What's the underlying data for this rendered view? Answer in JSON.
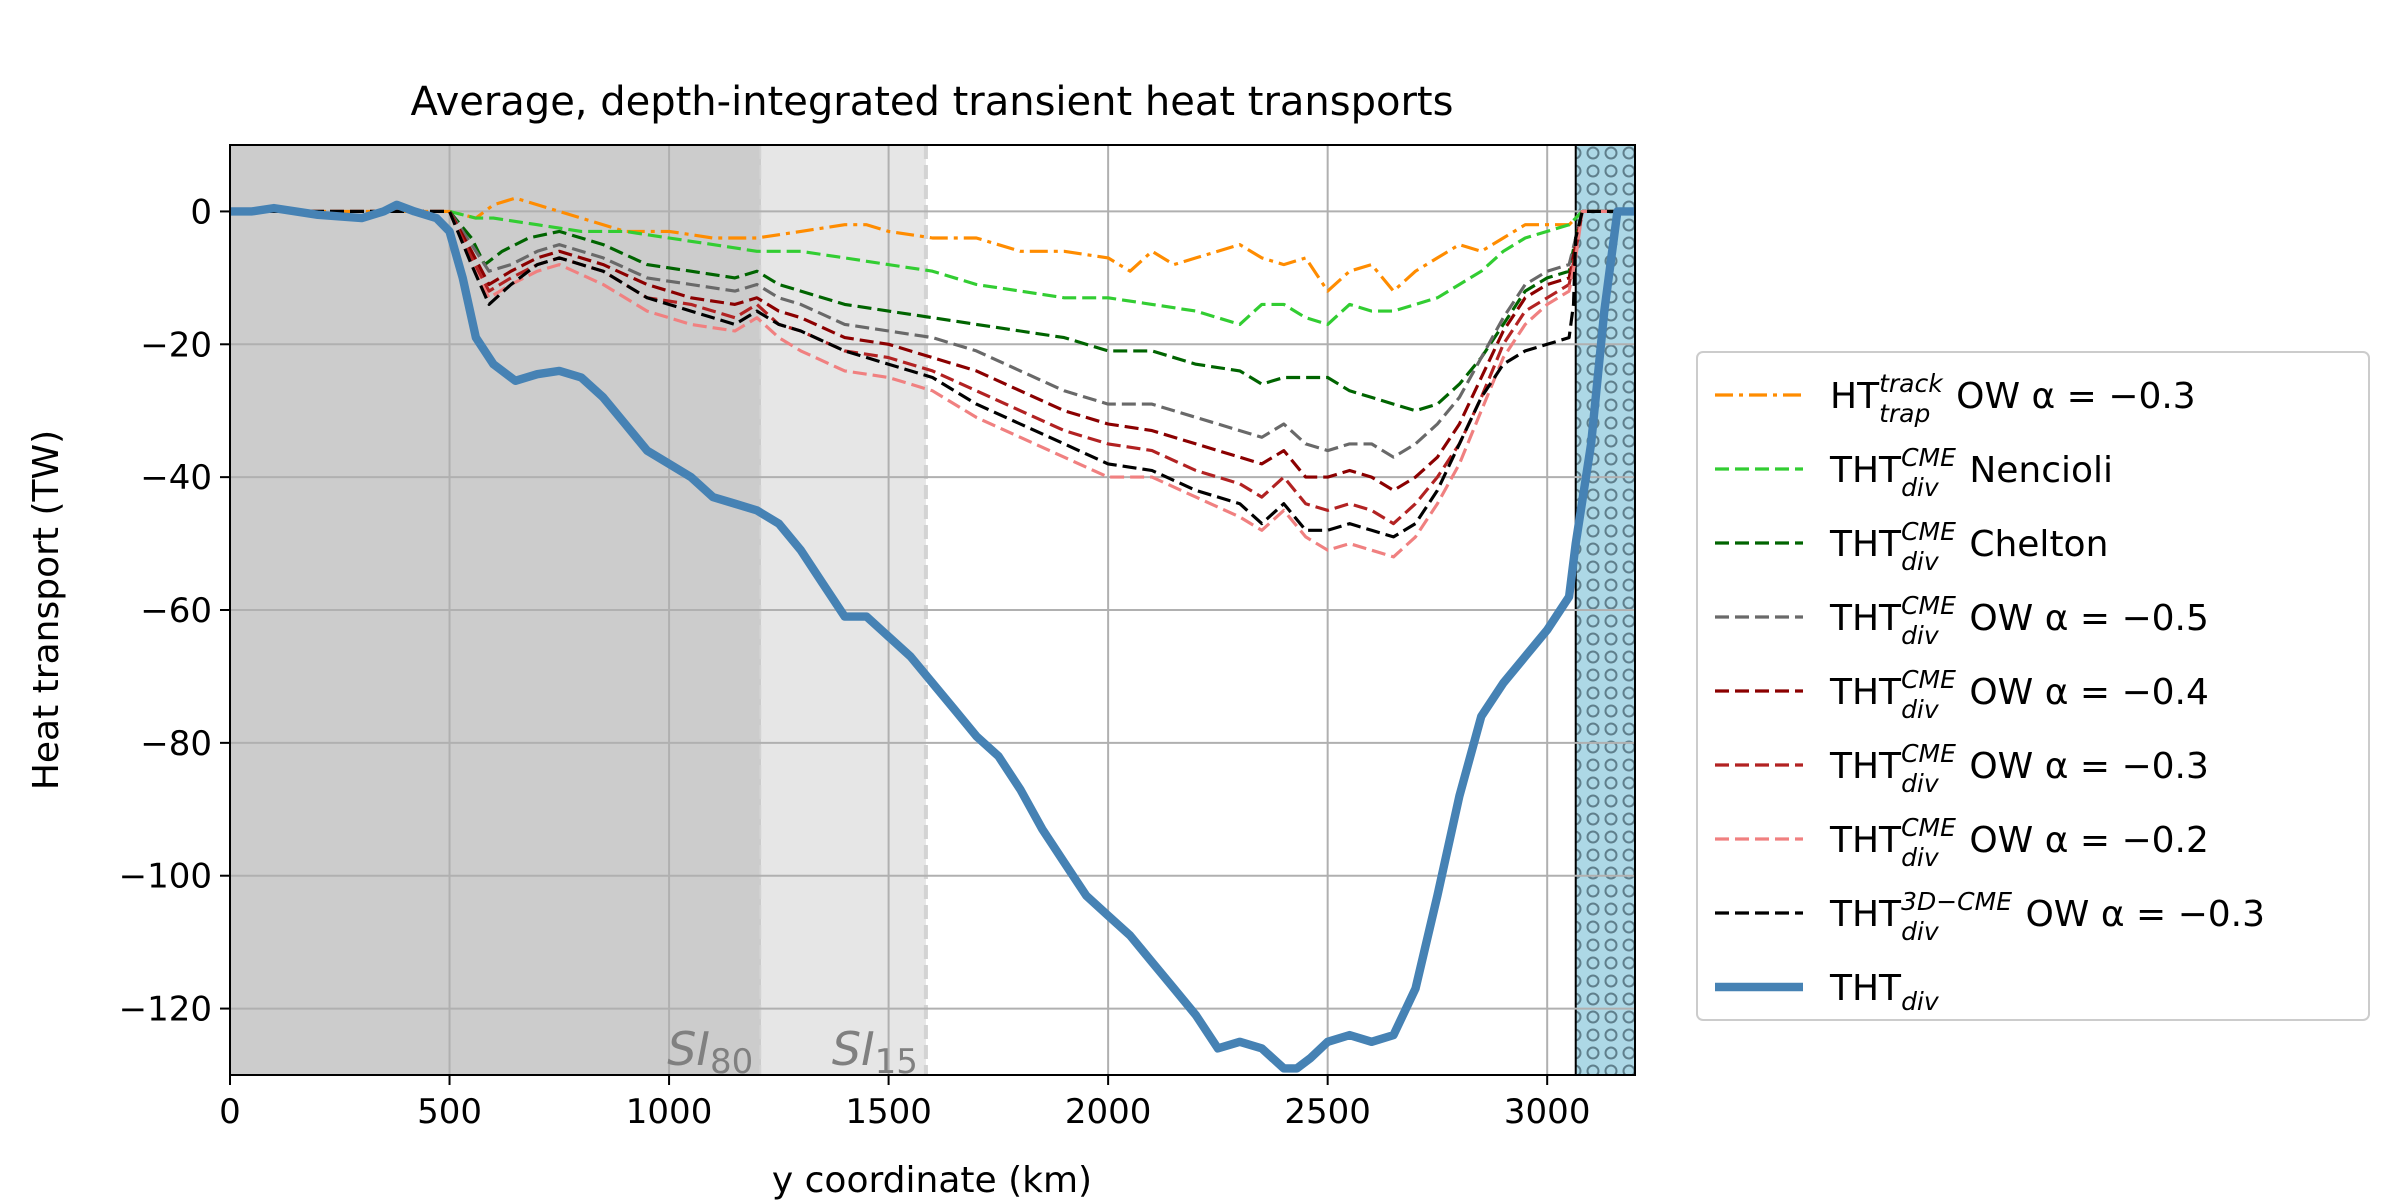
{
  "chart_data": {
    "type": "line",
    "title": "Average, depth-integrated transient heat transports",
    "xlabel": "y coordinate (km)",
    "ylabel": "Heat transport (TW)",
    "xlim": [
      0,
      3200
    ],
    "ylim": [
      -130,
      10
    ],
    "xticks": [
      0,
      500,
      1000,
      1500,
      2000,
      2500,
      3000
    ],
    "yticks": [
      0,
      -20,
      -40,
      -60,
      -80,
      -100,
      -120
    ],
    "xtick_labels": [
      "0",
      "500",
      "1000",
      "1500",
      "2000",
      "2500",
      "3000"
    ],
    "ytick_labels": [
      "0",
      "−20",
      "−40",
      "−60",
      "−80",
      "−100",
      "−120"
    ],
    "grid": true,
    "legend_placement": "outside right",
    "regions": [
      {
        "from": 0,
        "to": 1210,
        "color": "#cccccc",
        "label_main": "SI",
        "label_sub": "80"
      },
      {
        "from": 1210,
        "to": 1585,
        "color": "#e6e6e6",
        "label_main": "SI",
        "label_sub": "15"
      },
      {
        "from": 3065,
        "to": 3200,
        "color": "#add8e6",
        "pattern": "circles"
      }
    ],
    "series": [
      {
        "name_main": "HT",
        "name_sup": "track",
        "name_sub": "trap",
        "name_rest": "  OW α = −0.3",
        "color": "#ff8c00",
        "style": "dashdot",
        "width": 1.5,
        "x": [
          0,
          200,
          400,
          500,
          560,
          600,
          650,
          700,
          800,
          900,
          1000,
          1100,
          1200,
          1300,
          1400,
          1450,
          1500,
          1600,
          1700,
          1800,
          1900,
          2000,
          2050,
          2100,
          2150,
          2200,
          2250,
          2300,
          2350,
          2400,
          2450,
          2500,
          2550,
          2600,
          2650,
          2700,
          2750,
          2800,
          2850,
          2900,
          2950,
          3000,
          3050,
          3065,
          3080,
          3200
        ],
        "y": [
          0,
          0,
          0,
          0,
          -1,
          1,
          2,
          1,
          -1,
          -3,
          -3,
          -4,
          -4,
          -3,
          -2,
          -2,
          -3,
          -4,
          -4,
          -6,
          -6,
          -7,
          -9,
          -6,
          -8,
          -7,
          -6,
          -5,
          -7,
          -8,
          -7,
          -12,
          -9,
          -8,
          -12,
          -9,
          -7,
          -5,
          -6,
          -4,
          -2,
          -2,
          -2,
          -1,
          0,
          0
        ]
      },
      {
        "name_main": "THT",
        "name_sup": "CME",
        "name_sub": "div",
        "name_rest": " Nencioli",
        "color": "#32cd32",
        "style": "dashed",
        "width": 1.5,
        "x": [
          0,
          200,
          400,
          500,
          560,
          600,
          700,
          800,
          900,
          1000,
          1100,
          1200,
          1300,
          1400,
          1500,
          1600,
          1700,
          1800,
          1900,
          2000,
          2100,
          2200,
          2300,
          2350,
          2400,
          2450,
          2500,
          2550,
          2600,
          2650,
          2700,
          2750,
          2800,
          2850,
          2900,
          2950,
          3000,
          3050,
          3065,
          3080,
          3200
        ],
        "y": [
          0,
          0,
          0,
          0,
          -1,
          -1,
          -2,
          -3,
          -3,
          -4,
          -5,
          -6,
          -6,
          -7,
          -8,
          -9,
          -11,
          -12,
          -13,
          -13,
          -14,
          -15,
          -17,
          -14,
          -14,
          -16,
          -17,
          -14,
          -15,
          -15,
          -14,
          -13,
          -11,
          -9,
          -6,
          -4,
          -3,
          -2,
          -1,
          0,
          0
        ]
      },
      {
        "name_main": "THT",
        "name_sup": "CME",
        "name_sub": "div",
        "name_rest": " Chelton",
        "color": "#006400",
        "style": "dashed",
        "width": 1.5,
        "x": [
          0,
          200,
          400,
          500,
          550,
          580,
          620,
          680,
          750,
          850,
          950,
          1050,
          1150,
          1200,
          1250,
          1300,
          1400,
          1500,
          1600,
          1700,
          1800,
          1900,
          2000,
          2100,
          2200,
          2300,
          2350,
          2400,
          2500,
          2550,
          2600,
          2650,
          2700,
          2750,
          2800,
          2850,
          2900,
          2950,
          3000,
          3050,
          3065,
          3080,
          3200
        ],
        "y": [
          0,
          0,
          0,
          0,
          -4,
          -8,
          -6,
          -4,
          -3,
          -5,
          -8,
          -9,
          -10,
          -9,
          -11,
          -12,
          -14,
          -15,
          -16,
          -17,
          -18,
          -19,
          -21,
          -21,
          -23,
          -24,
          -26,
          -25,
          -25,
          -27,
          -28,
          -29,
          -30,
          -29,
          -26,
          -22,
          -17,
          -12,
          -10,
          -9,
          -4,
          0,
          0
        ]
      },
      {
        "name_main": "THT",
        "name_sup": "CME",
        "name_sub": "div",
        "name_rest": " OW α = −0.5",
        "color": "#696969",
        "style": "dashed",
        "width": 1.5,
        "x": [
          0,
          200,
          400,
          500,
          550,
          590,
          640,
          700,
          750,
          850,
          950,
          1050,
          1150,
          1200,
          1250,
          1300,
          1400,
          1500,
          1600,
          1700,
          1800,
          1900,
          2000,
          2100,
          2200,
          2300,
          2350,
          2400,
          2450,
          2500,
          2550,
          2600,
          2650,
          2700,
          2750,
          2800,
          2850,
          2900,
          2950,
          3000,
          3050,
          3065,
          3080,
          3200
        ],
        "y": [
          0,
          0,
          0,
          0,
          -5,
          -9,
          -8,
          -6,
          -5,
          -7,
          -10,
          -11,
          -12,
          -11,
          -13,
          -14,
          -17,
          -18,
          -19,
          -21,
          -24,
          -27,
          -29,
          -29,
          -31,
          -33,
          -34,
          -32,
          -35,
          -36,
          -35,
          -35,
          -37,
          -35,
          -32,
          -28,
          -22,
          -16,
          -11,
          -9,
          -8,
          -4,
          0,
          0
        ]
      },
      {
        "name_main": "THT",
        "name_sup": "CME",
        "name_sub": "div",
        "name_rest": " OW α = −0.4",
        "color": "#8b0000",
        "style": "dashed",
        "width": 1.5,
        "x": [
          0,
          200,
          400,
          500,
          550,
          590,
          640,
          700,
          750,
          850,
          950,
          1050,
          1150,
          1200,
          1250,
          1300,
          1400,
          1500,
          1600,
          1700,
          1800,
          1900,
          2000,
          2100,
          2200,
          2300,
          2350,
          2400,
          2450,
          2500,
          2550,
          2600,
          2650,
          2700,
          2750,
          2800,
          2850,
          2900,
          2950,
          3000,
          3050,
          3065,
          3080,
          3200
        ],
        "y": [
          0,
          0,
          0,
          0,
          -6,
          -11,
          -9,
          -7,
          -6,
          -8,
          -11,
          -13,
          -14,
          -13,
          -15,
          -16,
          -19,
          -20,
          -22,
          -24,
          -27,
          -30,
          -32,
          -33,
          -35,
          -37,
          -38,
          -36,
          -40,
          -40,
          -39,
          -40,
          -42,
          -40,
          -37,
          -32,
          -25,
          -18,
          -13,
          -11,
          -10,
          -5,
          0,
          0
        ]
      },
      {
        "name_main": "THT",
        "name_sup": "CME",
        "name_sub": "div",
        "name_rest": " OW α = −0.3",
        "color": "#b22222",
        "style": "dashed",
        "width": 1.5,
        "x": [
          0,
          200,
          400,
          500,
          550,
          590,
          640,
          700,
          750,
          850,
          950,
          1050,
          1150,
          1200,
          1250,
          1300,
          1400,
          1500,
          1600,
          1700,
          1800,
          1900,
          2000,
          2100,
          2200,
          2300,
          2350,
          2400,
          2450,
          2500,
          2550,
          2600,
          2650,
          2700,
          2750,
          2800,
          2850,
          2900,
          2950,
          3000,
          3050,
          3065,
          3080,
          3200
        ],
        "y": [
          0,
          0,
          0,
          0,
          -7,
          -12,
          -10,
          -8,
          -7,
          -9,
          -13,
          -14,
          -16,
          -14,
          -17,
          -18,
          -21,
          -22,
          -24,
          -27,
          -30,
          -33,
          -35,
          -36,
          -39,
          -41,
          -43,
          -40,
          -44,
          -45,
          -44,
          -45,
          -47,
          -44,
          -40,
          -35,
          -28,
          -20,
          -15,
          -13,
          -11,
          -6,
          0,
          0
        ]
      },
      {
        "name_main": "THT",
        "name_sup": "CME",
        "name_sub": "div",
        "name_rest": " OW α = −0.2",
        "color": "#f08080",
        "style": "dashed",
        "width": 1.5,
        "x": [
          0,
          200,
          400,
          500,
          550,
          590,
          640,
          700,
          750,
          850,
          950,
          1050,
          1150,
          1200,
          1250,
          1300,
          1400,
          1500,
          1600,
          1700,
          1800,
          1900,
          2000,
          2100,
          2200,
          2300,
          2350,
          2400,
          2450,
          2500,
          2550,
          2600,
          2650,
          2700,
          2750,
          2800,
          2850,
          2900,
          2950,
          3000,
          3050,
          3065,
          3080,
          3200
        ],
        "y": [
          0,
          0,
          0,
          0,
          -8,
          -13,
          -11,
          -9,
          -8,
          -11,
          -15,
          -17,
          -18,
          -16,
          -19,
          -21,
          -24,
          -25,
          -27,
          -31,
          -34,
          -37,
          -40,
          -40,
          -43,
          -46,
          -48,
          -45,
          -49,
          -51,
          -50,
          -51,
          -52,
          -49,
          -44,
          -38,
          -30,
          -22,
          -17,
          -14,
          -12,
          -7,
          0,
          0
        ]
      },
      {
        "name_main": "THT",
        "name_sup": "3D−CME",
        "name_sub": "div",
        "name_rest": " OW α = −0.3",
        "color": "#000000",
        "style": "dashed",
        "width": 1.5,
        "x": [
          0,
          200,
          400,
          500,
          550,
          590,
          640,
          700,
          750,
          850,
          950,
          1050,
          1150,
          1200,
          1250,
          1300,
          1400,
          1500,
          1600,
          1700,
          1800,
          1900,
          2000,
          2100,
          2200,
          2300,
          2350,
          2400,
          2450,
          2500,
          2550,
          2600,
          2650,
          2700,
          2750,
          2800,
          2850,
          2900,
          2950,
          3000,
          3050,
          3060,
          3065,
          3080,
          3200
        ],
        "y": [
          0,
          0,
          0,
          0,
          -8,
          -14,
          -11,
          -8,
          -7,
          -9,
          -13,
          -15,
          -17,
          -15,
          -17,
          -18,
          -21,
          -23,
          -25,
          -29,
          -32,
          -35,
          -38,
          -39,
          -42,
          -44,
          -47,
          -44,
          -48,
          -48,
          -47,
          -48,
          -49,
          -47,
          -42,
          -35,
          -28,
          -23,
          -21,
          -20,
          -19,
          -14,
          -4,
          0,
          0
        ]
      },
      {
        "name_main": "THT",
        "name_sup": "",
        "name_sub": "div",
        "name_rest": "",
        "color": "#4682b4",
        "style": "solid",
        "width": 4,
        "x": [
          0,
          50,
          100,
          200,
          300,
          350,
          380,
          420,
          470,
          500,
          530,
          560,
          600,
          650,
          700,
          750,
          800,
          850,
          900,
          950,
          1000,
          1050,
          1100,
          1150,
          1200,
          1250,
          1300,
          1350,
          1400,
          1450,
          1500,
          1550,
          1600,
          1650,
          1700,
          1750,
          1800,
          1850,
          1900,
          1950,
          2000,
          2050,
          2100,
          2150,
          2200,
          2250,
          2300,
          2350,
          2400,
          2430,
          2460,
          2500,
          2550,
          2600,
          2650,
          2700,
          2750,
          2800,
          2850,
          2900,
          2950,
          3000,
          3050,
          3065,
          3100,
          3130,
          3160,
          3200
        ],
        "y": [
          0,
          0,
          0.5,
          -0.5,
          -1,
          0,
          1,
          0,
          -1,
          -3,
          -10,
          -19,
          -23,
          -25.5,
          -24.5,
          -24,
          -25,
          -28,
          -32,
          -36,
          -38,
          -40,
          -43,
          -44,
          -45,
          -47,
          -51,
          -56,
          -61,
          -61,
          -64,
          -67,
          -71,
          -75,
          -79,
          -82,
          -87,
          -93,
          -98,
          -103,
          -106,
          -109,
          -113,
          -117,
          -121,
          -126,
          -125,
          -126,
          -129,
          -129,
          -127.5,
          -125,
          -124,
          -125,
          -124,
          -117,
          -103,
          -88,
          -76,
          -71,
          -67,
          -63,
          -58,
          -50,
          -35,
          -15,
          0,
          0
        ]
      }
    ]
  }
}
